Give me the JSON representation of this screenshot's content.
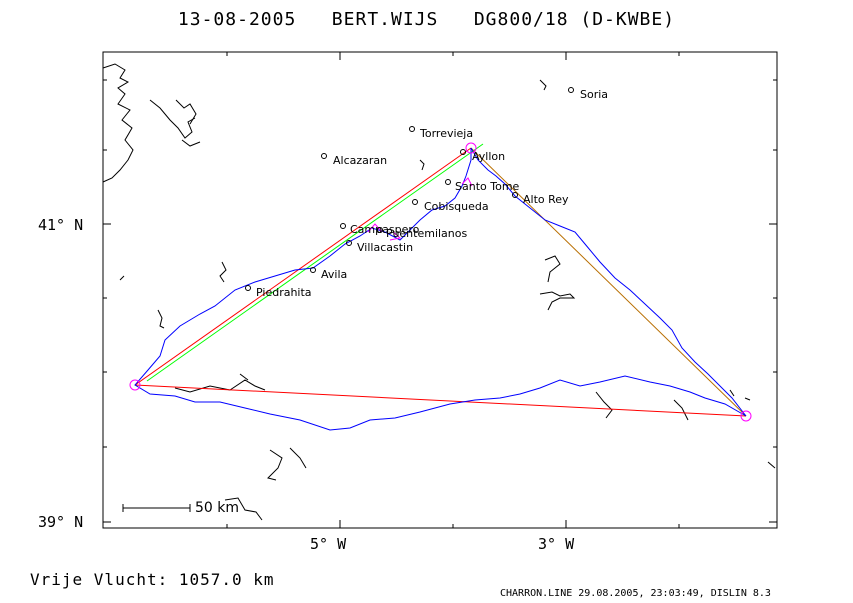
{
  "title": "13-08-2005   BERT.WIJS   DG800/18 (D-KWBE)",
  "footer": {
    "distance": "Vrije Vlucht: 1057.0 km",
    "software": "CHARRON.LINE 29.08.2005, 23:03:49, DISLIN 8.3"
  },
  "axes": {
    "y_ticks": [
      "41° N",
      "39° N"
    ],
    "x_ticks": [
      "5° W",
      "3° W"
    ]
  },
  "scale_bar": {
    "label": "50 km"
  },
  "colors": {
    "track": "#0000ff",
    "task_line_red": "#ff0000",
    "task_line_green": "#00ff00",
    "task_line_orange": "#b86e00",
    "turnpoint": "#ff00ff",
    "coast": "#000000"
  },
  "places": [
    {
      "name": "Soria"
    },
    {
      "name": "Torrevieja"
    },
    {
      "name": "Alcazaran"
    },
    {
      "name": "Ayllon"
    },
    {
      "name": "Santo Tome"
    },
    {
      "name": "Alto Rey"
    },
    {
      "name": "Cobisqueda"
    },
    {
      "name": "Campaspero"
    },
    {
      "name": "Puentemilanos"
    },
    {
      "name": "Villacastin"
    },
    {
      "name": "Avila"
    },
    {
      "name": "Piedrahita"
    }
  ]
}
